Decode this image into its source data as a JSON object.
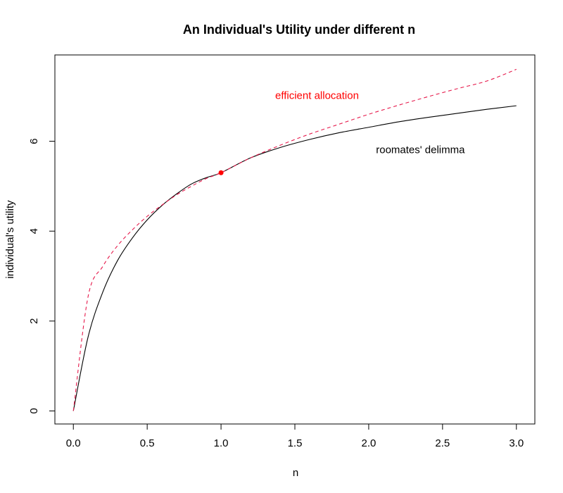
{
  "chart_data": {
    "type": "line",
    "title": "An Individual's Utility under different n",
    "xlabel": "n",
    "ylabel": "individual's utility",
    "xlim": [
      -0.125,
      3.125
    ],
    "ylim": [
      -0.29,
      7.92
    ],
    "x_ticks": [
      "0.0",
      "0.5",
      "1.0",
      "1.5",
      "2.0",
      "2.5",
      "3.0"
    ],
    "x_tick_values": [
      0,
      0.5,
      1.0,
      1.5,
      2.0,
      2.5,
      3.0
    ],
    "y_ticks": [
      "0",
      "2",
      "4",
      "6"
    ],
    "y_tick_values": [
      0,
      2,
      4,
      6
    ],
    "grid": false,
    "legend": "none",
    "x": [
      0,
      0.1,
      0.2,
      0.3,
      0.4,
      0.5,
      0.6,
      0.7,
      0.8,
      0.9,
      1.0,
      1.2,
      1.4,
      1.6,
      1.8,
      2.0,
      2.2,
      2.4,
      2.6,
      2.8,
      3.0
    ],
    "series": [
      {
        "label": "roomates' delimma",
        "color": "#000000",
        "style": "solid",
        "values": [
          0,
          1.65,
          2.65,
          3.35,
          3.85,
          4.25,
          4.57,
          4.83,
          5.05,
          5.19,
          5.3,
          5.63,
          5.86,
          6.04,
          6.19,
          6.31,
          6.43,
          6.53,
          6.62,
          6.71,
          6.79
        ]
      },
      {
        "label": "efficient allocation",
        "color": "#e6194b",
        "style": "dashed",
        "values": [
          0,
          2.55,
          3.22,
          3.68,
          4.03,
          4.33,
          4.58,
          4.81,
          5.0,
          5.17,
          5.3,
          5.63,
          5.91,
          6.16,
          6.38,
          6.6,
          6.8,
          6.99,
          7.17,
          7.34,
          7.6
        ]
      }
    ],
    "point": {
      "x": 1.0,
      "y": 5.3,
      "color": "#ff0000"
    },
    "annotations": [
      {
        "text": "efficient allocation",
        "x": 1.65,
        "y": 7.0,
        "color": "#ff0000"
      },
      {
        "text": "roomates' delimma",
        "x": 2.35,
        "y": 5.8,
        "color": "#000000"
      }
    ]
  }
}
